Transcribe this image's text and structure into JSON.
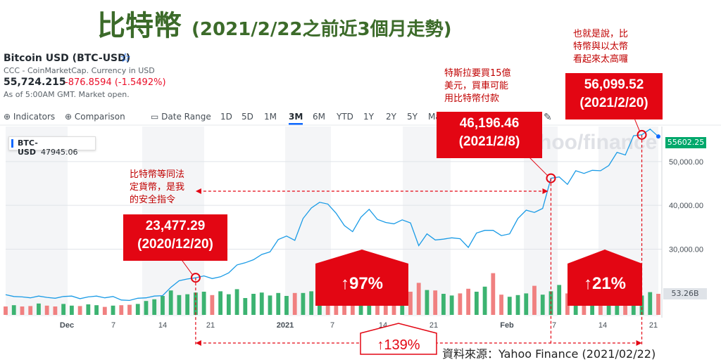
{
  "title": {
    "main": "比特幣",
    "sub": "(2021/2/22之前近3個月走勢)"
  },
  "ticker": {
    "name": "Bitcoin USD (BTC-USD)",
    "meta": "CCC - CoinMarketCap. Currency in USD",
    "price": "55,724.215",
    "change": "-876.8594 (-1.5492%)",
    "asof": "As of 5:00AM GMT. Market open."
  },
  "toolbar": {
    "indicators": "Indicators",
    "comparison": "Comparison",
    "date_range": "Date Range",
    "ranges": [
      "1D",
      "5D",
      "1M",
      "3M",
      "6M",
      "YTD",
      "1Y",
      "2Y",
      "5Y",
      "Ma"
    ],
    "active_range": "3M",
    "watermark": "hoo/finance"
  },
  "legend": {
    "series_tag": "BTC-USD",
    "series_value": "47945.06",
    "last_price": "55602.25",
    "last_volume": "53.26B"
  },
  "callouts": {
    "box1": {
      "value": "23,477.29",
      "date": "(2020/12/20)"
    },
    "box2": {
      "value": "46,196.46",
      "date": "(2021/2/8)"
    },
    "box3": {
      "value": "56,099.52",
      "date": "(2021/2/20)"
    },
    "pct1": "↑97%",
    "pct2": "↑21%",
    "pct3": "↑139%"
  },
  "notes": {
    "note1": [
      "比特幣等同法",
      "定貨幣，是我",
      "的安全指令"
    ],
    "note2": [
      "特斯拉要買15億",
      "美元，買車可能",
      "用比特幣付款"
    ],
    "note3": [
      "也就是說，比",
      "特幣與以太幣",
      "看起來太高囉"
    ]
  },
  "source": "資料來源：Yahoo Finance (2021/02/22)",
  "chart_data": {
    "type": "line",
    "series": [
      {
        "values": [
          19600,
          19200,
          19100,
          18900,
          19300,
          19000,
          18800,
          19200,
          19300,
          18700,
          19100,
          19300,
          18900,
          19200,
          18400,
          18300,
          18800,
          18900,
          19300,
          19400,
          21300,
          22800,
          23200,
          23477,
          23900,
          23300,
          23700,
          24600,
          26400,
          26900,
          27600,
          28800,
          29400,
          32200,
          33000,
          32000,
          37000,
          39400,
          40700,
          40300,
          38200,
          35400,
          34000,
          37300,
          39100,
          36800,
          36100,
          35800,
          36700,
          36000,
          30800,
          33500,
          32100,
          32300,
          32600,
          32400,
          30400,
          33700,
          34300,
          34300,
          33100,
          33500,
          37000,
          38900,
          38400,
          39300,
          46196,
          46500,
          44800,
          47900,
          47300,
          48000,
          47900,
          49100,
          52100,
          51500,
          55900,
          56099,
          57400,
          55724
        ],
        "color": "#1a9be6"
      }
    ],
    "x_labels": [
      "Dec",
      "7",
      "14",
      "21",
      "2021",
      "7",
      "14",
      "21",
      "Feb",
      "7",
      "14",
      "21"
    ],
    "y_ticks": [
      "50,000.00",
      "40,000.00",
      "30,000.00"
    ],
    "ylim": [
      15000,
      58000
    ],
    "volume_series": {
      "values": [
        20,
        23,
        20,
        21,
        27,
        22,
        20,
        26,
        22,
        21,
        25,
        23,
        19,
        22,
        23,
        24,
        26,
        33,
        37,
        45,
        58,
        47,
        49,
        53,
        55,
        47,
        56,
        49,
        61,
        40,
        50,
        53,
        46,
        52,
        45,
        52,
        52,
        56,
        60,
        62,
        48,
        55,
        56,
        60,
        63,
        52,
        47,
        49,
        57,
        55,
        76,
        59,
        58,
        50,
        46,
        51,
        62,
        55,
        67,
        99,
        48,
        43,
        47,
        51,
        69,
        48,
        56,
        71,
        51,
        52,
        62,
        58,
        65,
        48,
        68,
        56,
        62,
        46,
        54,
        50
      ],
      "up": [
        0,
        1,
        0,
        0,
        1,
        0,
        0,
        1,
        1,
        0,
        1,
        1,
        0,
        1,
        0,
        0,
        1,
        1,
        1,
        1,
        1,
        1,
        1,
        1,
        1,
        0,
        1,
        1,
        1,
        1,
        1,
        1,
        1,
        1,
        1,
        0,
        1,
        1,
        1,
        0,
        0,
        0,
        0,
        1,
        1,
        0,
        0,
        0,
        1,
        0,
        0,
        1,
        0,
        1,
        1,
        0,
        0,
        1,
        1,
        0,
        0,
        1,
        1,
        1,
        0,
        1,
        1,
        1,
        0,
        1,
        0,
        1,
        0,
        1,
        1,
        0,
        1,
        1,
        1,
        0
      ]
    }
  }
}
